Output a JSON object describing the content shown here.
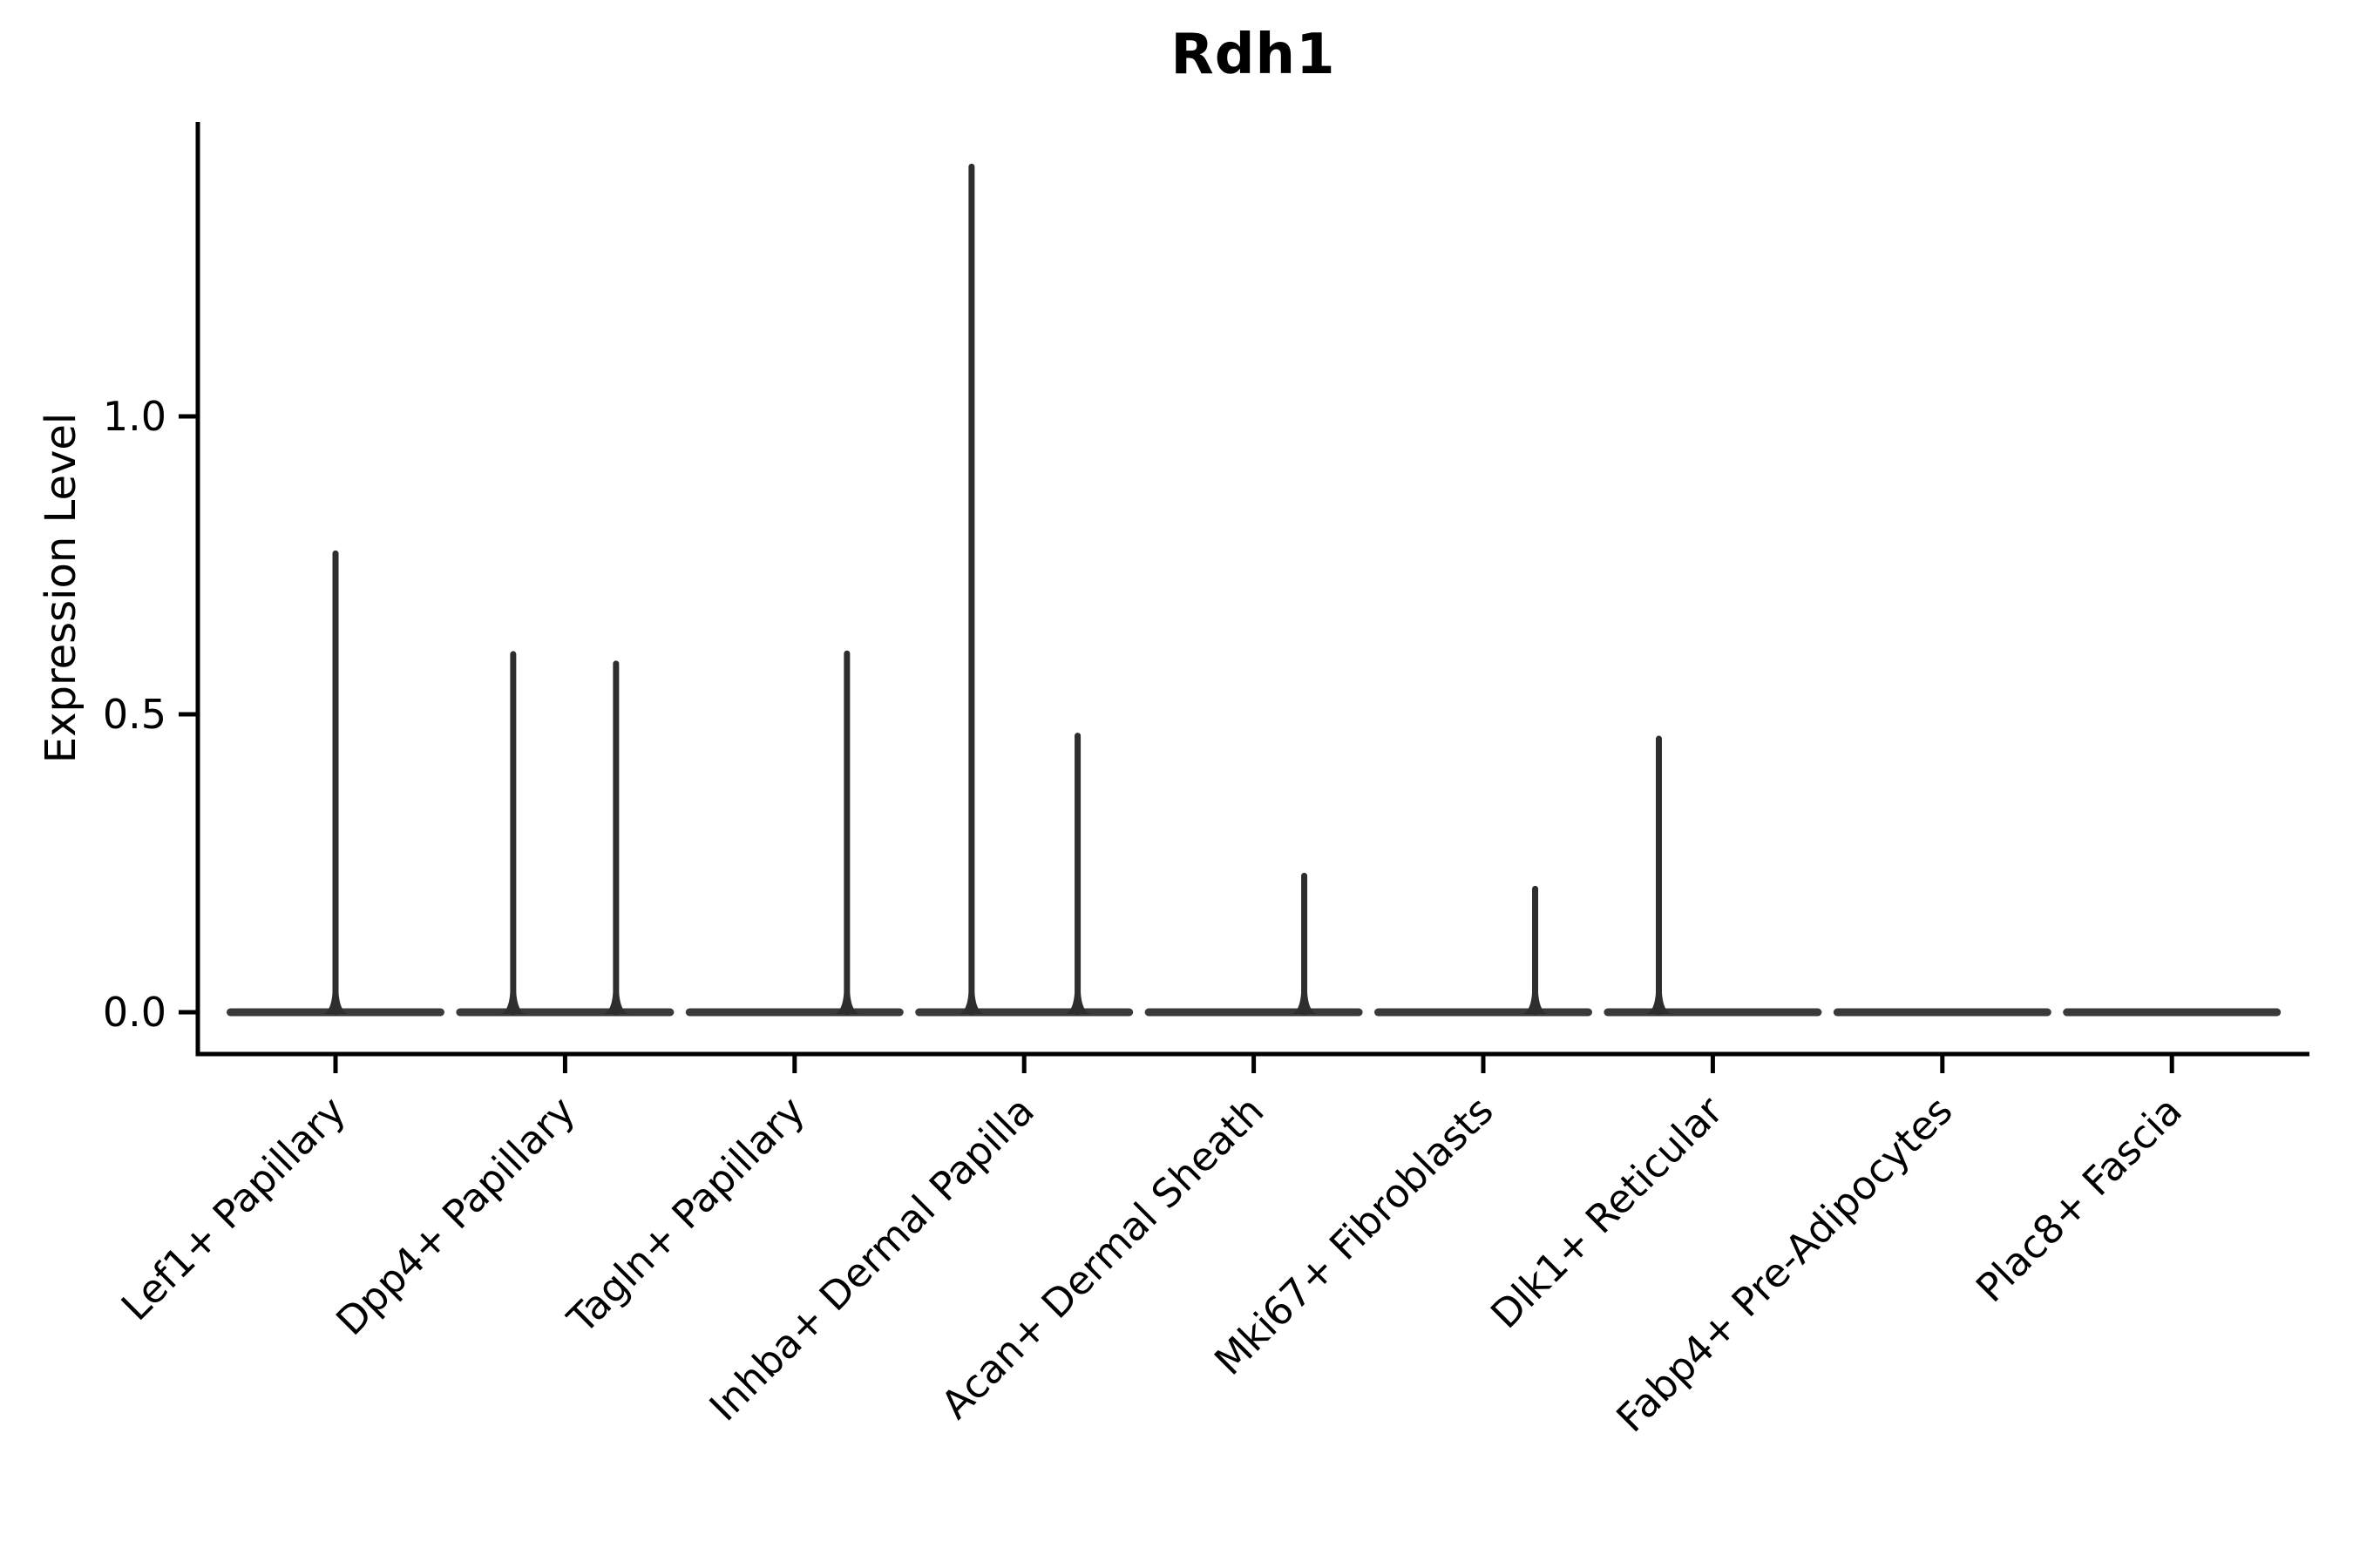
{
  "chart_data": {
    "type": "violin",
    "title": "Rdh1",
    "xlabel": "",
    "ylabel": "Expression Level",
    "ylim": [
      -0.07,
      1.49
    ],
    "grid": false,
    "legend": null,
    "yticks": [
      {
        "value": 0.0,
        "label": "0.0"
      },
      {
        "value": 0.5,
        "label": "0.5"
      },
      {
        "value": 1.0,
        "label": "1.0"
      }
    ],
    "categories": [
      "Lef1+ Papillary",
      "Dpp4+ Papillary",
      "Tagln+ Papillary",
      "Inhba+ Dermal Papilla",
      "Acan+ Dermal Sheath",
      "Mki67+ Fibroblasts",
      "Dlk1+ Reticular",
      "Fabp4+ Pre-Adipocytes",
      "Plac8+ Fascia"
    ],
    "violins": [
      {
        "label": "Lef1+ Papillary",
        "baseline_value": 0,
        "half_width": 0.4575,
        "spikes": [
          {
            "offset": 0.0,
            "value": 0.77
          }
        ]
      },
      {
        "label": "Dpp4+ Papillary",
        "baseline_value": 0,
        "half_width": 0.4575,
        "spikes": [
          {
            "offset": -0.226,
            "value": 0.601
          },
          {
            "offset": 0.222,
            "value": 0.585
          }
        ]
      },
      {
        "label": "Tagln+ Papillary",
        "baseline_value": 0,
        "half_width": 0.4575,
        "spikes": [
          {
            "offset": 0.228,
            "value": 0.602
          }
        ]
      },
      {
        "label": "Inhba+ Dermal Papilla",
        "baseline_value": 0,
        "half_width": 0.4575,
        "spikes": [
          {
            "offset": -0.229,
            "value": 1.419
          },
          {
            "offset": 0.233,
            "value": 0.464
          }
        ]
      },
      {
        "label": "Acan+ Dermal Sheath",
        "baseline_value": 0,
        "half_width": 0.4575,
        "spikes": [
          {
            "offset": 0.22,
            "value": 0.229
          }
        ]
      },
      {
        "label": "Mki67+ Fibroblasts",
        "baseline_value": 0,
        "half_width": 0.4575,
        "spikes": [
          {
            "offset": 0.226,
            "value": 0.207
          }
        ]
      },
      {
        "label": "Dlk1+ Reticular",
        "baseline_value": 0,
        "half_width": 0.4575,
        "spikes": [
          {
            "offset": -0.235,
            "value": 0.459
          }
        ]
      },
      {
        "label": "Fabp4+ Pre-Adipocytes",
        "baseline_value": 0,
        "half_width": 0.4575,
        "spikes": []
      },
      {
        "label": "Plac8+ Fascia",
        "baseline_value": 0,
        "half_width": 0.4575,
        "spikes": []
      }
    ]
  },
  "colors": {
    "background": "#ffffff",
    "axis": "#000000",
    "text": "#000000",
    "violin_spike": "#2e2e2e",
    "violin_baseline": "#3a3a3a"
  }
}
